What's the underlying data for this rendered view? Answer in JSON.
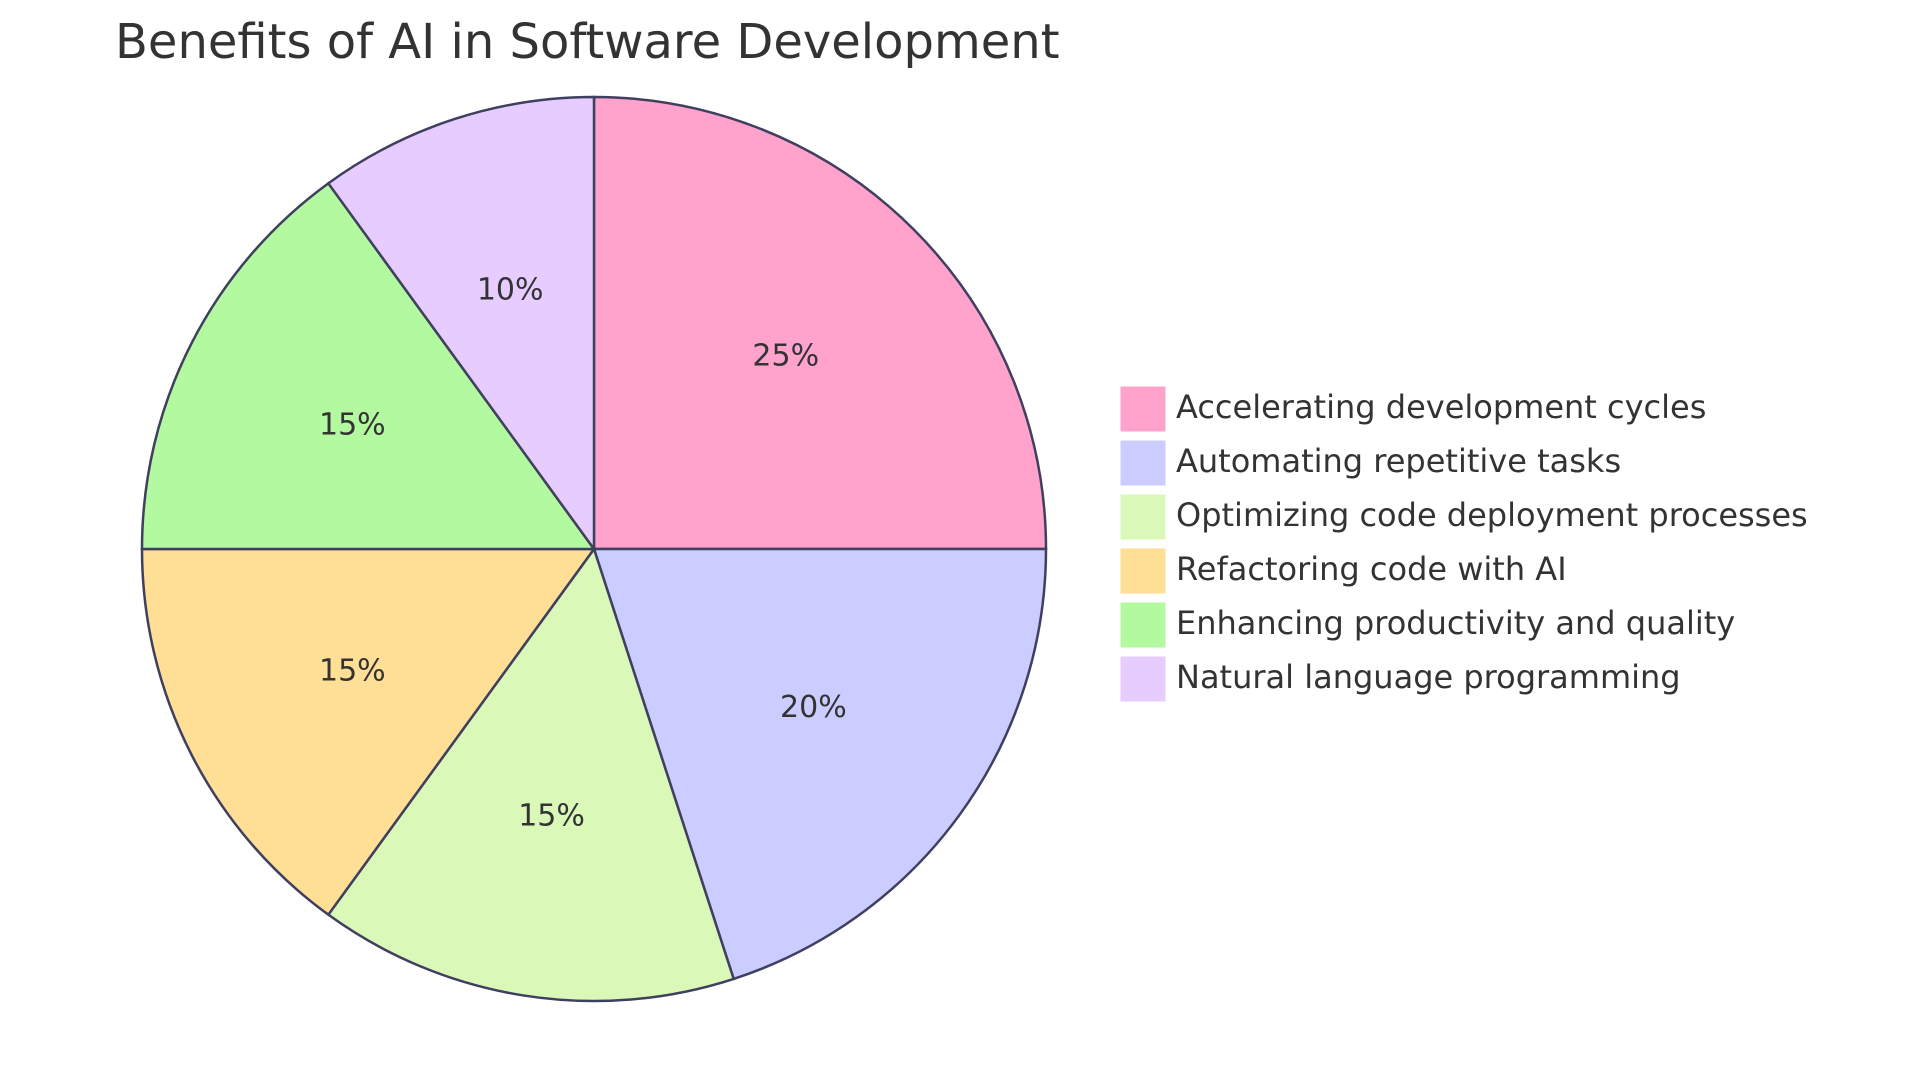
{
  "chart_data": {
    "type": "pie",
    "title": "Benefits of AI in Software Development",
    "slices": [
      {
        "label": "Accelerating development cycles",
        "value": 25,
        "display": "25%",
        "color": "#FFA3CD"
      },
      {
        "label": "Automating repetitive tasks",
        "value": 20,
        "display": "20%",
        "color": "#CBCCFF"
      },
      {
        "label": "Optimizing code deployment processes",
        "value": 15,
        "display": "15%",
        "color": "#DAF8B8"
      },
      {
        "label": "Refactoring code with AI",
        "value": 15,
        "display": "15%",
        "color": "#FFDE96"
      },
      {
        "label": "Enhancing productivity and quality",
        "value": 15,
        "display": "15%",
        "color": "#B3F99F"
      },
      {
        "label": "Natural language programming",
        "value": 10,
        "display": "10%",
        "color": "#E6CCFF"
      }
    ],
    "legend_position": "right",
    "stroke_color": "#3F3F5F"
  }
}
